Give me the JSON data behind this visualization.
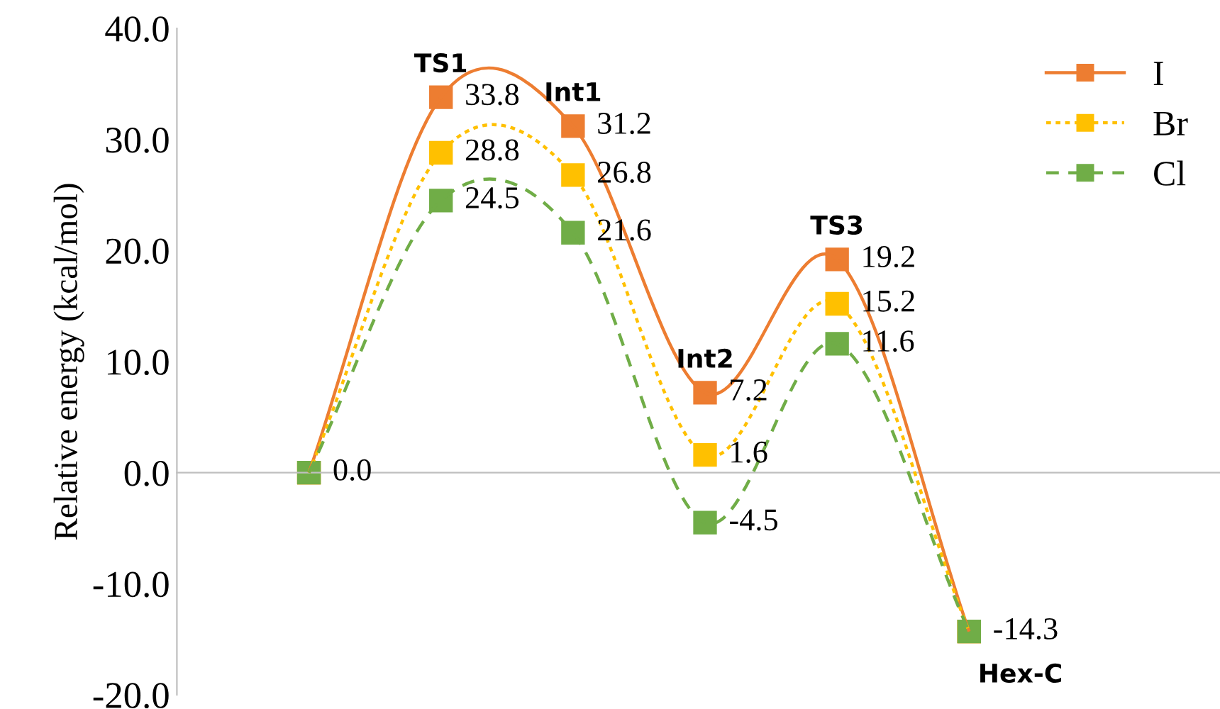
{
  "chart_data": {
    "type": "line",
    "ylabel": "Relative energy (kcal/mol)",
    "categories": [
      null,
      "TS1",
      "Int1",
      "Int2",
      "TS3",
      "Hex-C"
    ],
    "series": [
      {
        "name": "I",
        "color": "#ed7d31",
        "line_style": "solid",
        "values": [
          0.0,
          33.8,
          31.2,
          7.2,
          19.2,
          -14.3
        ],
        "value_labels": [
          null,
          "33.8",
          "31.2",
          "7.2",
          "19.2",
          null
        ]
      },
      {
        "name": "Br",
        "color": "#ffc000",
        "line_style": "dotted",
        "values": [
          0.0,
          28.8,
          26.8,
          1.6,
          15.2,
          -14.3
        ],
        "value_labels": [
          null,
          "28.8",
          "26.8",
          "1.6",
          "15.2",
          null
        ]
      },
      {
        "name": "Cl",
        "color": "#70ad47",
        "line_style": "dashed",
        "values": [
          0.0,
          24.5,
          21.6,
          -4.5,
          11.6,
          -14.3
        ],
        "value_labels": [
          "0.0",
          "24.5",
          "21.6",
          "-4.5",
          "11.6",
          "-14.3"
        ]
      }
    ],
    "ylim": [
      -20,
      40
    ],
    "yticks": [
      {
        "value": -20,
        "label": "-20.0"
      },
      {
        "value": -10,
        "label": "-10.0"
      },
      {
        "value": 0,
        "label": "0.0"
      },
      {
        "value": 10,
        "label": "10.0"
      },
      {
        "value": 20,
        "label": "20.0"
      },
      {
        "value": 30,
        "label": "30.0"
      },
      {
        "value": 40,
        "label": "40.0"
      }
    ],
    "legend": "top right",
    "marker": "square"
  }
}
